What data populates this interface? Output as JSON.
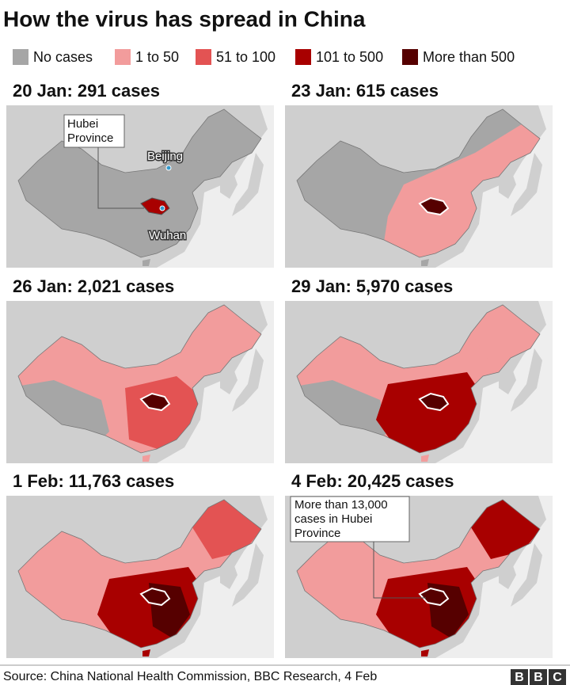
{
  "header": {
    "title": "How the virus has spread in China"
  },
  "legend": [
    {
      "label": "No cases",
      "color": "#a6a6a6"
    },
    {
      "label": "1 to 50",
      "color": "#f29c9c"
    },
    {
      "label": "51 to 100",
      "color": "#e35353"
    },
    {
      "label": "101 to 500",
      "color": "#a80000"
    },
    {
      "label": "More than 500",
      "color": "#560000"
    }
  ],
  "panels": [
    {
      "title": "20 Jan: 291 cases"
    },
    {
      "title": "23 Jan: 615 cases"
    },
    {
      "title": "26 Jan: 2,021 cases"
    },
    {
      "title": "29 Jan: 5,970 cases"
    },
    {
      "title": "1 Feb: 11,763 cases"
    },
    {
      "title": "4 Feb: 20,425 cases"
    }
  ],
  "annotations": {
    "hubei": [
      "Hubei",
      "Province"
    ],
    "beijing": "Beijing",
    "wuhan": "Wuhan",
    "hubei_cases": [
      "More than 13,000",
      "cases in Hubei",
      "Province"
    ]
  },
  "footer": {
    "source": "Source: China National Health Commission, BBC Research, 4 Feb",
    "logo": [
      "B",
      "B",
      "C"
    ]
  }
}
